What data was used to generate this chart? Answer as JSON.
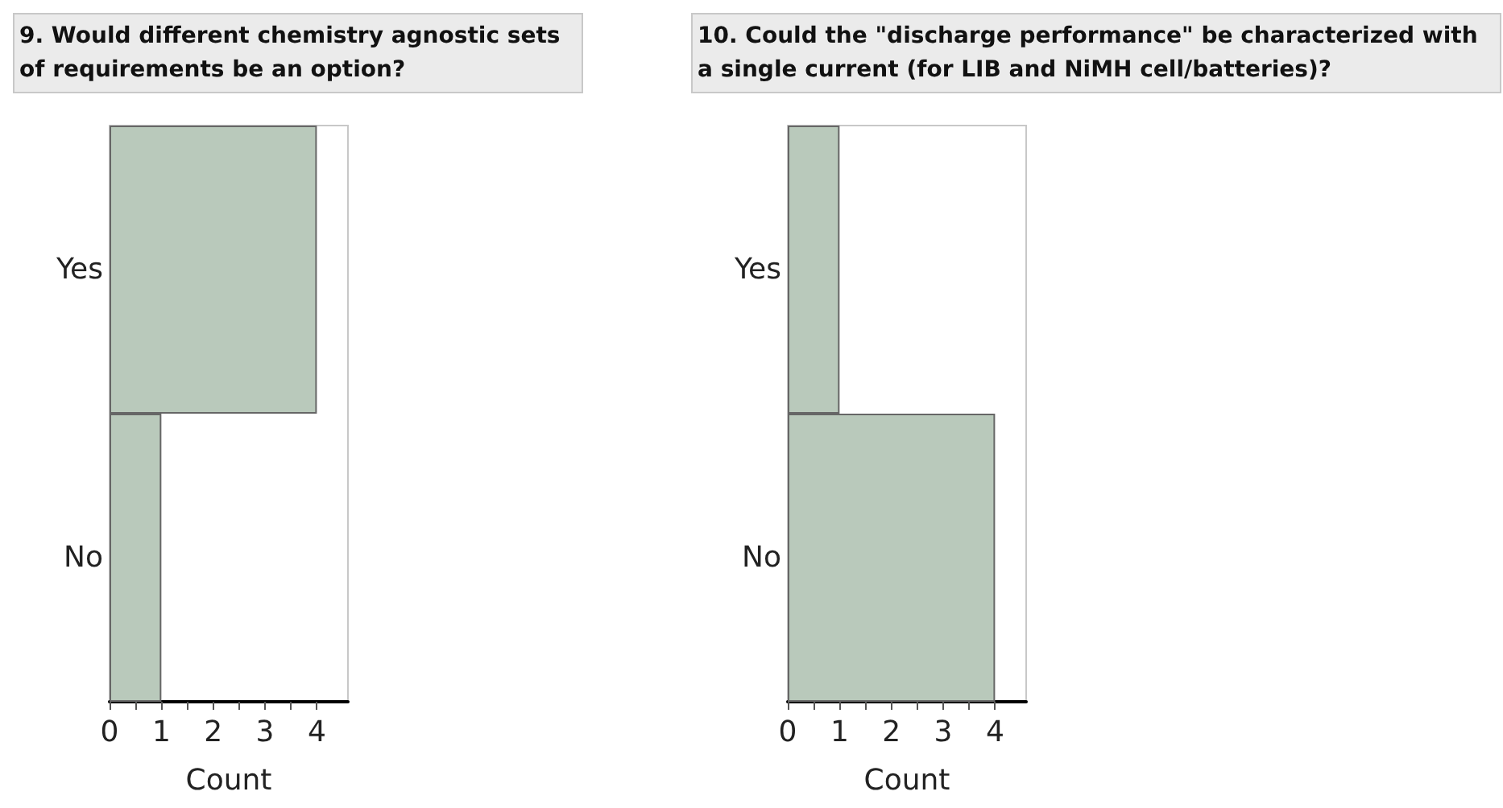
{
  "chart_data": [
    {
      "type": "bar",
      "orientation": "horizontal",
      "title": "9. Would different chemistry agnostic sets of requirements be an option?",
      "categories": [
        "Yes",
        "No"
      ],
      "values": [
        4,
        1
      ],
      "color": "#b9c9bb",
      "xlabel": "Count",
      "xlim": [
        0,
        4.6
      ],
      "xticks": [
        0,
        {
          "value": 0.5,
          "label": null
        },
        1,
        {
          "value": 1.5,
          "label": null
        },
        2,
        {
          "value": 2.5,
          "label": null
        },
        3,
        {
          "value": 3.5,
          "label": null
        },
        4
      ],
      "grid": false
    },
    {
      "type": "bar",
      "orientation": "horizontal",
      "title": "10. Could the \"discharge performance\" be characterized with a single current (for LIB and NiMH cell/batteries)?",
      "categories": [
        "Yes",
        "No"
      ],
      "values": [
        1,
        4
      ],
      "color": "#b9c9bb",
      "xlabel": "Count",
      "xlim": [
        0,
        4.6
      ],
      "xticks": [
        0,
        {
          "value": 0.5,
          "label": null
        },
        1,
        {
          "value": 1.5,
          "label": null
        },
        2,
        {
          "value": 2.5,
          "label": null
        },
        3,
        {
          "value": 3.5,
          "label": null
        },
        4
      ],
      "grid": false
    }
  ]
}
